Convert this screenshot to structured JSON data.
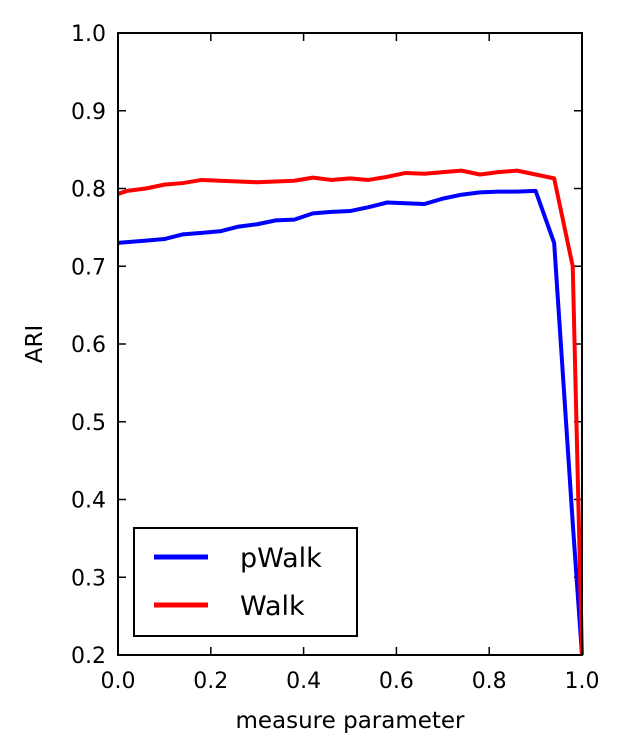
{
  "chart_data": {
    "type": "line",
    "title": "",
    "xlabel": "measure parameter",
    "ylabel": "ARI",
    "xlim": [
      0.0,
      1.0
    ],
    "ylim": [
      0.2,
      1.0
    ],
    "xticks": [
      "0.0",
      "0.2",
      "0.4",
      "0.6",
      "0.8",
      "1.0"
    ],
    "yticks": [
      "0.2",
      "0.3",
      "0.4",
      "0.5",
      "0.6",
      "0.7",
      "0.8",
      "0.9",
      "1.0"
    ],
    "grid": false,
    "legend_position": "lower-left",
    "series": [
      {
        "name": "pWalk",
        "color": "#0000ff",
        "x": [
          0.0,
          0.02,
          0.06,
          0.1,
          0.14,
          0.18,
          0.22,
          0.26,
          0.3,
          0.34,
          0.38,
          0.42,
          0.46,
          0.5,
          0.54,
          0.58,
          0.62,
          0.66,
          0.7,
          0.74,
          0.78,
          0.82,
          0.86,
          0.9,
          0.94,
          0.96,
          0.98,
          1.0
        ],
        "y": [
          0.73,
          0.731,
          0.733,
          0.735,
          0.741,
          0.743,
          0.745,
          0.751,
          0.754,
          0.759,
          0.76,
          0.768,
          0.77,
          0.771,
          0.776,
          0.782,
          0.781,
          0.78,
          0.787,
          0.792,
          0.795,
          0.796,
          0.796,
          0.797,
          0.73,
          0.55,
          0.37,
          0.2
        ]
      },
      {
        "name": "Walk",
        "color": "#ff0000",
        "x": [
          0.0,
          0.02,
          0.06,
          0.1,
          0.14,
          0.18,
          0.22,
          0.26,
          0.3,
          0.34,
          0.38,
          0.42,
          0.46,
          0.5,
          0.54,
          0.58,
          0.62,
          0.66,
          0.7,
          0.74,
          0.78,
          0.82,
          0.86,
          0.9,
          0.94,
          0.98,
          1.0
        ],
        "y": [
          0.793,
          0.797,
          0.8,
          0.805,
          0.807,
          0.811,
          0.81,
          0.809,
          0.808,
          0.809,
          0.81,
          0.814,
          0.811,
          0.813,
          0.811,
          0.815,
          0.82,
          0.819,
          0.821,
          0.823,
          0.818,
          0.821,
          0.823,
          0.818,
          0.813,
          0.7,
          0.2
        ]
      }
    ]
  }
}
